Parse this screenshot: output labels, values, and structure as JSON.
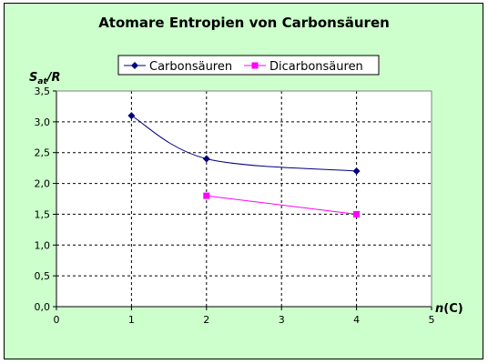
{
  "chart_data": {
    "type": "line",
    "title": "Atomare Entropien von Carbonsäuren",
    "ylabel": {
      "main": "S",
      "sub": "at",
      "rest": "/R"
    },
    "xlabel": {
      "main": "n",
      "rest": "(C)"
    },
    "xlim": [
      0,
      5
    ],
    "ylim": [
      0,
      3.5
    ],
    "xticks": [
      "0",
      "1",
      "2",
      "3",
      "4",
      "5"
    ],
    "yticks": [
      "0,0",
      "0,5",
      "1,0",
      "1,5",
      "2,0",
      "2,5",
      "3,0",
      "3,5"
    ],
    "grid": true,
    "legend_position": "top",
    "series": [
      {
        "name": "Carbonsäuren",
        "color": "#000080",
        "marker": "diamond",
        "smooth": true,
        "points": [
          [
            1,
            3.1
          ],
          [
            2,
            2.4
          ],
          [
            4,
            2.2
          ]
        ]
      },
      {
        "name": "Dicarbonsäuren",
        "color": "#ff00ff",
        "marker": "square",
        "smooth": false,
        "points": [
          [
            2,
            1.8
          ],
          [
            4,
            1.5
          ]
        ]
      }
    ]
  }
}
